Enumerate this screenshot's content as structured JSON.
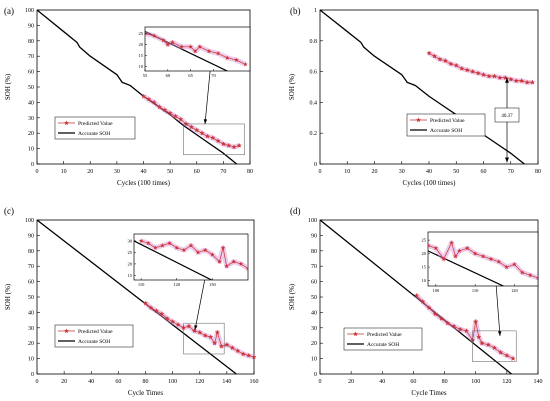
{
  "chart_data": [
    {
      "panel_label": "(a)",
      "type": "line",
      "xlabel": "Cycles (100 times)",
      "ylabel": "SOH (%)",
      "xlim": [
        0,
        80
      ],
      "ylim": [
        0,
        100
      ],
      "xticks": [
        0,
        10,
        20,
        30,
        40,
        50,
        60,
        70,
        80
      ],
      "yticks": [
        0,
        10,
        20,
        30,
        40,
        50,
        60,
        70,
        80,
        90,
        100
      ],
      "legend": {
        "position": "lower-left"
      },
      "series": [
        {
          "name": "Accurate SOH",
          "style": "line",
          "color": "#000000",
          "x": [
            0,
            5,
            10,
            15,
            16,
            20,
            25,
            30,
            32,
            35,
            40,
            45,
            50,
            55,
            60,
            65,
            70,
            75
          ],
          "y": [
            100,
            93,
            86,
            79,
            76,
            70,
            64,
            58,
            53,
            51,
            44,
            38,
            32,
            25,
            19,
            13,
            7,
            0
          ]
        },
        {
          "name": "Predicted Value",
          "style": "line-star",
          "color": "#cc3333",
          "x": [
            40,
            42,
            44,
            46,
            48,
            50,
            52,
            54,
            56,
            58,
            60,
            62,
            64,
            66,
            68,
            70,
            72,
            74,
            76
          ],
          "y": [
            44,
            42,
            40,
            37,
            35,
            33,
            31,
            29,
            26,
            24,
            22,
            20,
            18,
            17,
            15,
            13,
            12,
            11,
            12
          ]
        }
      ],
      "inset": {
        "xlim": [
          55,
          78
        ],
        "ylim": [
          8,
          28
        ],
        "xticks": [
          55,
          60,
          65,
          70
        ],
        "yticks": [
          10,
          15,
          20,
          25
        ],
        "series": [
          {
            "name": "Accurate SOH",
            "x": [
              55,
              78
            ],
            "y": [
              26,
              3
            ]
          },
          {
            "name": "Predicted Value",
            "x": [
              55,
              57,
              59,
              60,
              61,
              63,
              65,
              66,
              67,
              69,
              71,
              73,
              75,
              77
            ],
            "y": [
              25,
              24,
              22,
              20,
              21,
              19,
              19,
              17,
              19,
              17,
              16,
              14,
              13,
              11
            ]
          }
        ]
      }
    },
    {
      "panel_label": "(b)",
      "type": "line",
      "xlabel": "Cycles (100 times)",
      "ylabel": "SOH (%)",
      "xlim": [
        0,
        80
      ],
      "ylim": [
        0,
        1
      ],
      "xticks": [
        0,
        10,
        20,
        30,
        40,
        50,
        60,
        70,
        80
      ],
      "yticks": [
        0,
        0.2,
        0.4,
        0.6,
        0.8,
        1
      ],
      "annotation": "40.37",
      "legend": {
        "position": "center"
      },
      "series": [
        {
          "name": "Accurate SOH",
          "style": "line",
          "color": "#000000",
          "x": [
            0,
            5,
            10,
            15,
            16,
            20,
            25,
            30,
            32,
            35,
            40,
            45,
            50,
            55,
            60,
            65,
            70,
            75
          ],
          "y": [
            1,
            0.93,
            0.86,
            0.79,
            0.76,
            0.7,
            0.64,
            0.58,
            0.53,
            0.51,
            0.44,
            0.38,
            0.32,
            0.25,
            0.19,
            0.13,
            0.07,
            0
          ]
        },
        {
          "name": "Predicted Value",
          "style": "line-star",
          "color": "#cc3333",
          "x": [
            40,
            42,
            44,
            46,
            48,
            50,
            52,
            54,
            56,
            58,
            60,
            62,
            64,
            66,
            68,
            70,
            72,
            74,
            76,
            78
          ],
          "y": [
            0.72,
            0.7,
            0.68,
            0.67,
            0.65,
            0.64,
            0.62,
            0.61,
            0.6,
            0.59,
            0.58,
            0.57,
            0.57,
            0.56,
            0.56,
            0.55,
            0.54,
            0.54,
            0.53,
            0.53
          ]
        }
      ]
    },
    {
      "panel_label": "(c)",
      "type": "line",
      "xlabel": "Cycle Times",
      "ylabel": "SOH (%)",
      "xlim": [
        0,
        160
      ],
      "ylim": [
        0,
        100
      ],
      "xticks": [
        0,
        20,
        40,
        60,
        80,
        100,
        120,
        140,
        160
      ],
      "yticks": [
        0,
        10,
        20,
        30,
        40,
        50,
        60,
        70,
        80,
        90,
        100
      ],
      "legend": {
        "position": "lower-left"
      },
      "series": [
        {
          "name": "Accurate SOH",
          "style": "line",
          "color": "#000000",
          "x": [
            0,
            147
          ],
          "y": [
            100,
            0
          ]
        },
        {
          "name": "Predicted Value",
          "style": "line-star",
          "color": "#cc3333",
          "x": [
            80,
            84,
            88,
            92,
            96,
            100,
            104,
            108,
            112,
            116,
            120,
            124,
            128,
            131,
            133,
            136,
            140,
            144,
            148,
            152,
            156,
            160
          ],
          "y": [
            46,
            43,
            41,
            39,
            36,
            34,
            32,
            30,
            31,
            28,
            27,
            25,
            24,
            20,
            27,
            18,
            19,
            17,
            15,
            13,
            12,
            11
          ]
        }
      ],
      "inset": {
        "xlim": [
          108,
          140
        ],
        "ylim": [
          13,
          33
        ],
        "xticks": [
          110,
          120,
          130
        ],
        "yticks": [
          15,
          20,
          25,
          30
        ],
        "series": [
          {
            "name": "Accurate SOH",
            "x": [
              108,
              140
            ],
            "y": [
              30,
              5
            ]
          },
          {
            "name": "Predicted Value",
            "x": [
              110,
              112,
              114,
              116,
              118,
              120,
              122,
              124,
              126,
              128,
              130,
              132,
              133,
              134,
              136,
              138,
              140
            ],
            "y": [
              30,
              29,
              27,
              28,
              29,
              27,
              26,
              28,
              25,
              26,
              24,
              21,
              27,
              19,
              21,
              20,
              18
            ]
          }
        ]
      }
    },
    {
      "panel_label": "(d)",
      "type": "line",
      "xlabel": "Cycle Times",
      "ylabel": "SOH (%)",
      "xlim": [
        0,
        140
      ],
      "ylim": [
        0,
        100
      ],
      "xticks": [
        0,
        20,
        40,
        60,
        80,
        100,
        120,
        140
      ],
      "yticks": [
        0,
        10,
        20,
        30,
        40,
        50,
        60,
        70,
        80,
        90,
        100
      ],
      "legend": {
        "position": "lower-left"
      },
      "series": [
        {
          "name": "Accurate SOH",
          "style": "line",
          "color": "#000000",
          "x": [
            0,
            123
          ],
          "y": [
            100,
            0
          ]
        },
        {
          "name": "Predicted Value",
          "style": "line-star",
          "color": "#cc3333",
          "x": [
            62,
            66,
            70,
            74,
            78,
            82,
            86,
            90,
            94,
            98,
            100,
            102,
            104,
            108,
            112,
            116,
            120,
            124
          ],
          "y": [
            51,
            47,
            43,
            39,
            36,
            33,
            31,
            29,
            28,
            22,
            34,
            24,
            20,
            19,
            17,
            14,
            12,
            10
          ]
        }
      ],
      "inset": {
        "xlim": [
          98,
          126
        ],
        "ylim": [
          8,
          28
        ],
        "xticks": [
          100,
          110,
          120
        ],
        "yticks": [
          10,
          15,
          20,
          25
        ],
        "series": [
          {
            "name": "Accurate SOH",
            "x": [
              98,
              126
            ],
            "y": [
              21,
              2
            ]
          },
          {
            "name": "Predicted Value",
            "x": [
              98,
              100,
              102,
              104,
              105,
              106,
              108,
              110,
              112,
              114,
              116,
              118,
              120,
              122,
              124,
              126
            ],
            "y": [
              23,
              22,
              18,
              24,
              19,
              21,
              22,
              20,
              19,
              18,
              17,
              15,
              16,
              13,
              12,
              11
            ]
          }
        ]
      }
    }
  ]
}
